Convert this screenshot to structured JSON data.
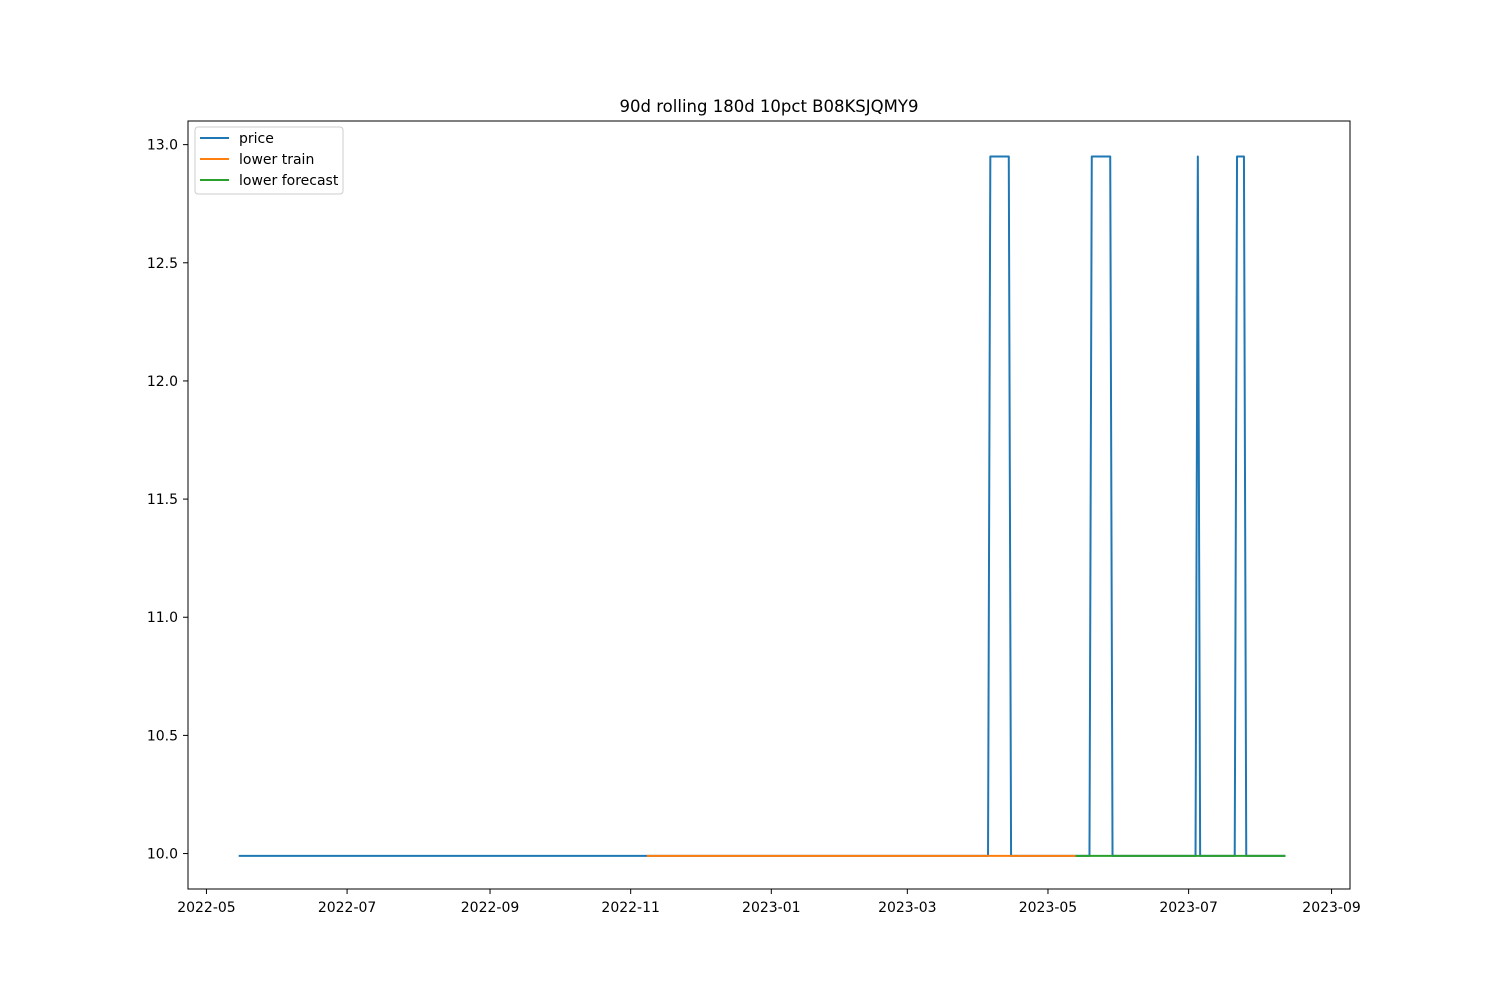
{
  "chart_data": {
    "type": "line",
    "title": "90d rolling 180d 10pct B08KSJQMY9",
    "xlabel": "",
    "ylabel": "",
    "xlim": [
      "2022-04-23",
      "2023-09-09"
    ],
    "ylim": [
      9.85,
      13.1
    ],
    "x_ticks": [
      "2022-05",
      "2022-07",
      "2022-09",
      "2022-11",
      "2023-01",
      "2023-03",
      "2023-05",
      "2023-07",
      "2023-09"
    ],
    "y_ticks": [
      "10.0",
      "10.5",
      "11.0",
      "11.5",
      "12.0",
      "12.5",
      "13.0"
    ],
    "grid": false,
    "legend": "upper left",
    "series": [
      {
        "name": "price",
        "color": "#1f77b4",
        "points": [
          [
            "2022-05-15",
            9.99
          ],
          [
            "2023-04-05",
            9.99
          ],
          [
            "2023-04-06",
            12.95
          ],
          [
            "2023-04-14",
            12.95
          ],
          [
            "2023-04-15",
            9.99
          ],
          [
            "2023-05-19",
            9.99
          ],
          [
            "2023-05-20",
            12.95
          ],
          [
            "2023-05-28",
            12.95
          ],
          [
            "2023-05-29",
            9.99
          ],
          [
            "2023-07-04",
            9.99
          ],
          [
            "2023-07-05",
            12.95
          ],
          [
            "2023-07-06",
            9.99
          ],
          [
            "2023-07-21",
            9.99
          ],
          [
            "2023-07-22",
            12.95
          ],
          [
            "2023-07-25",
            12.95
          ],
          [
            "2023-07-26",
            9.99
          ],
          [
            "2023-08-12",
            9.99
          ]
        ]
      },
      {
        "name": "lower train",
        "color": "#ff7f0e",
        "points": [
          [
            "2022-11-08",
            9.99
          ],
          [
            "2023-05-13",
            9.99
          ]
        ]
      },
      {
        "name": "lower forecast",
        "color": "#2ca02c",
        "points": [
          [
            "2023-05-13",
            9.99
          ],
          [
            "2023-08-12",
            9.99
          ]
        ]
      }
    ]
  }
}
